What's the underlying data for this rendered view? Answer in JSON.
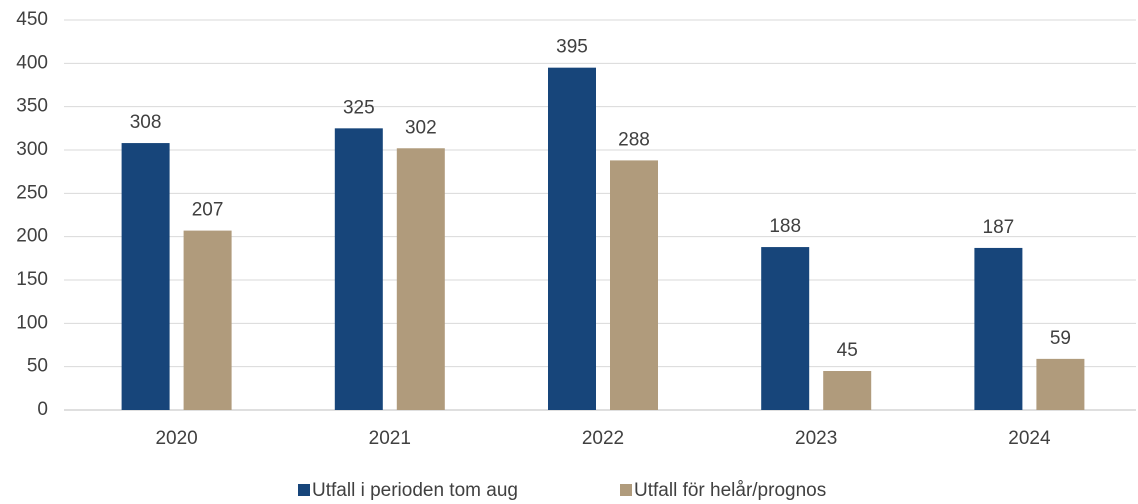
{
  "chart_data": {
    "type": "bar",
    "categories": [
      "2020",
      "2021",
      "2022",
      "2023",
      "2024"
    ],
    "series": [
      {
        "name": "Utfall i perioden tom aug",
        "color": "#17457a",
        "values": [
          308,
          325,
          395,
          188,
          187
        ]
      },
      {
        "name": "Utfall för helår/prognos",
        "color": "#b09b7c",
        "values": [
          207,
          302,
          288,
          45,
          59
        ]
      }
    ],
    "ylim": [
      0,
      450
    ],
    "yticks": [
      0,
      50,
      100,
      150,
      200,
      250,
      300,
      350,
      400,
      450
    ],
    "grid": true,
    "legend": "bottom"
  }
}
